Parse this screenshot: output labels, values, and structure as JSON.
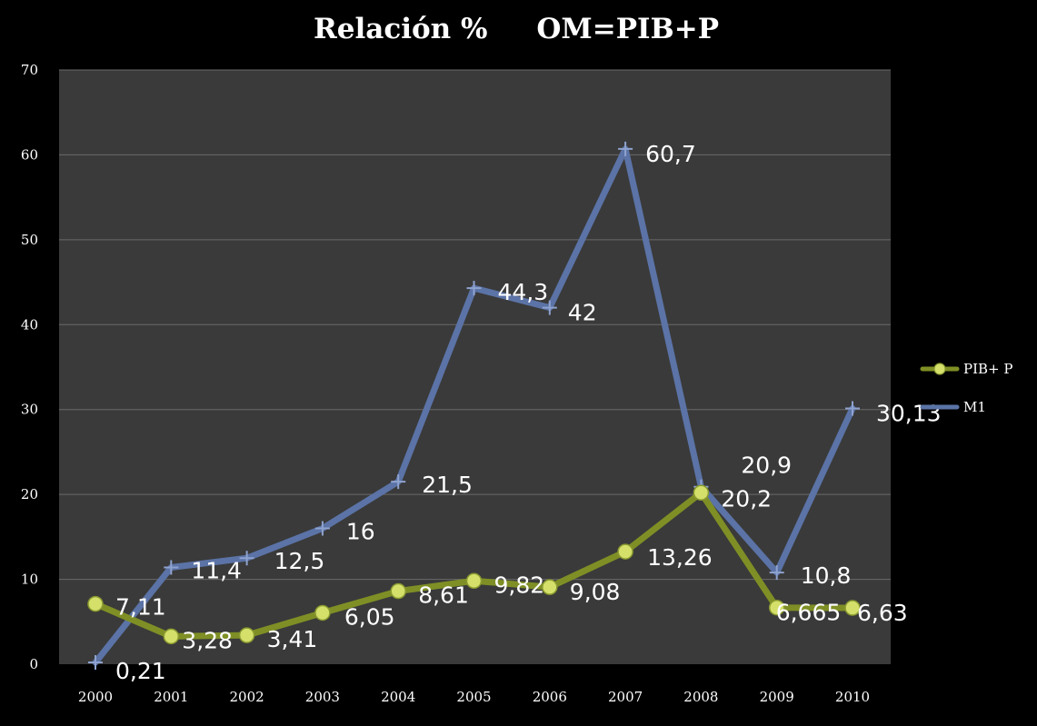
{
  "chart_data": {
    "type": "line",
    "title": "Relación %     OM=PIB+P",
    "xlabel": "",
    "ylabel": "",
    "categories": [
      "2000",
      "2001",
      "2002",
      "2003",
      "2004",
      "2005",
      "2006",
      "2007",
      "2008",
      "2009",
      "2010"
    ],
    "ylim": [
      0,
      70
    ],
    "yticks": [
      "0",
      "10",
      "20",
      "30",
      "40",
      "50",
      "60",
      "70"
    ],
    "grid": true,
    "legend_position": "right",
    "series": [
      {
        "name": "PIB+ P",
        "color": "#7f8f25",
        "marker_color": "#d4e06a",
        "marker": "circle",
        "values": [
          7.11,
          3.28,
          3.41,
          6.05,
          8.61,
          9.82,
          9.08,
          13.26,
          20.2,
          6.665,
          6.63
        ],
        "labels": [
          "7,11",
          "3,28",
          "3,41",
          "6,05",
          "8,61",
          "9,82",
          "9,08",
          "13,26",
          "20,2",
          "6,665",
          "6,63"
        ]
      },
      {
        "name": "M1",
        "color": "#5b73a6",
        "marker": "plus",
        "values": [
          0.21,
          11.4,
          12.5,
          16,
          21.5,
          44.3,
          42,
          60.7,
          20.9,
          10.8,
          30.13
        ],
        "labels": [
          "0,21",
          "11,4",
          "12,5",
          "16",
          "21,5",
          "44,3",
          "42",
          "60,7",
          "20,9",
          "10,8",
          "30,13"
        ]
      }
    ]
  }
}
